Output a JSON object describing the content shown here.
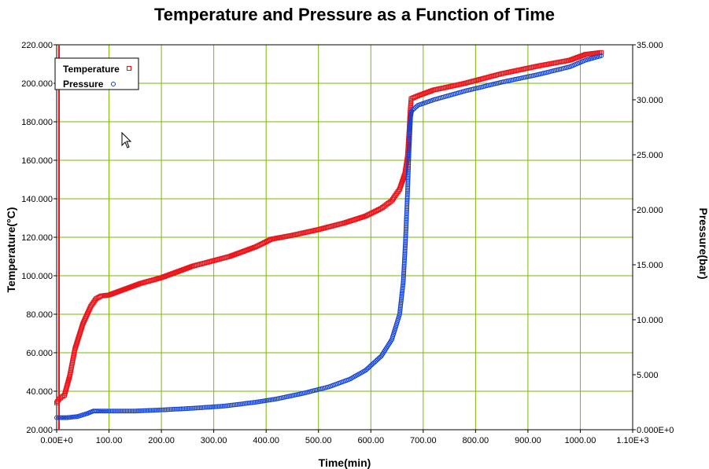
{
  "chart_data": {
    "type": "scatter",
    "title": "Temperature and Pressure as a Function of Time",
    "xlabel": "Time(min)",
    "ylabel_left": "Temperature(°C)",
    "ylabel_right": "Pressure(bar)",
    "xlim": [
      0,
      1100
    ],
    "ylim_left": [
      20,
      220
    ],
    "ylim_right": [
      0,
      35
    ],
    "x_ticks": [
      0,
      100,
      200,
      300,
      400,
      500,
      600,
      700,
      800,
      900,
      1000,
      1100
    ],
    "x_tick_labels": [
      "0.00E+0",
      "100.00",
      "200.00",
      "300.00",
      "400.00",
      "500.00",
      "600.00",
      "700.00",
      "800.00",
      "900.00",
      "1000.00",
      "1.10E+3"
    ],
    "y_left_ticks": [
      20,
      40,
      60,
      80,
      100,
      120,
      140,
      160,
      180,
      200,
      220
    ],
    "y_left_tick_labels": [
      "20.000",
      "40.000",
      "60.000",
      "80.000",
      "100.000",
      "120.000",
      "140.000",
      "160.000",
      "180.000",
      "200.000",
      "220.000"
    ],
    "y_right_ticks": [
      0,
      5,
      10,
      15,
      20,
      25,
      30,
      35
    ],
    "y_right_tick_labels": [
      "0.000E+0",
      "5.000",
      "10.000",
      "15.000",
      "20.000",
      "25.000",
      "30.000",
      "35.000"
    ],
    "grid": true,
    "legend_position": "top-left",
    "series": [
      {
        "name": "Temperature",
        "axis": "left",
        "color": "#e8141a",
        "marker": "square",
        "x": [
          0,
          5,
          15,
          25,
          35,
          50,
          65,
          75,
          85,
          100,
          130,
          160,
          200,
          260,
          330,
          380,
          410,
          450,
          500,
          550,
          590,
          620,
          640,
          655,
          665,
          670,
          673,
          675,
          677,
          690,
          720,
          780,
          850,
          920,
          980,
          1010,
          1040
        ],
        "values": [
          34,
          36,
          38,
          48,
          62,
          75,
          84,
          88,
          89.5,
          90,
          93,
          96,
          99,
          105,
          110,
          115,
          119,
          121,
          124,
          127.5,
          131,
          135,
          139,
          145,
          153,
          162,
          175,
          185,
          192,
          193.5,
          196.5,
          200,
          205,
          209,
          212,
          215,
          216
        ]
      },
      {
        "name": "Pressure",
        "axis": "right",
        "color": "#1040d8",
        "marker": "circle",
        "x": [
          0,
          20,
          40,
          60,
          70,
          80,
          100,
          150,
          200,
          260,
          320,
          380,
          420,
          470,
          520,
          560,
          590,
          620,
          640,
          655,
          662,
          666,
          670,
          673,
          676,
          678,
          690,
          720,
          780,
          850,
          920,
          980,
          1010,
          1040
        ],
        "values": [
          1.1,
          1.1,
          1.2,
          1.5,
          1.7,
          1.7,
          1.7,
          1.7,
          1.8,
          1.95,
          2.15,
          2.5,
          2.8,
          3.3,
          3.9,
          4.6,
          5.4,
          6.7,
          8.2,
          10.5,
          13.5,
          17,
          21.5,
          25.5,
          28.5,
          29,
          29.5,
          30,
          30.8,
          31.6,
          32.3,
          33,
          33.6,
          34
        ]
      }
    ]
  }
}
